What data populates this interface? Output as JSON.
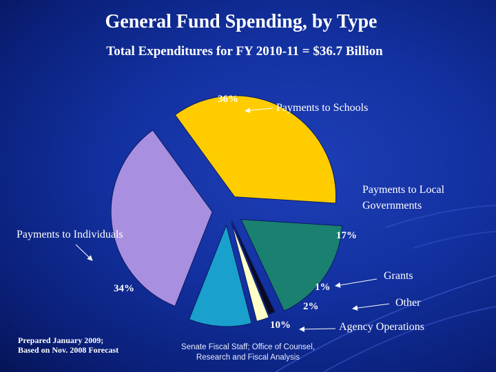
{
  "chart_data": {
    "type": "pie",
    "title": "General Fund Spending, by Type",
    "subtitle": "Total Expenditures for FY 2010-11 = $36.7 Billion",
    "slices": [
      {
        "name": "Payments to Schools",
        "value": 36,
        "label": "36%",
        "color": "#ffcc00"
      },
      {
        "name": "Payments to Local Governments",
        "value": 17,
        "label": "17%",
        "color": "#1a8070"
      },
      {
        "name": "Grants",
        "value": 1,
        "label": "1%",
        "color": "#0a0a20"
      },
      {
        "name": "Other",
        "value": 2,
        "label": "2%",
        "color": "#ffffc8"
      },
      {
        "name": "Agency Operations",
        "value": 10,
        "label": "10%",
        "color": "#1aa0cc"
      },
      {
        "name": "Payments to Individuals",
        "value": 34,
        "label": "34%",
        "color": "#a88fe0"
      }
    ],
    "legend": "none"
  },
  "footer": {
    "prepared_line1": "Prepared January 2009;",
    "prepared_line2": "Based on Nov. 2008 Forecast",
    "source_line1": "Senate Fiscal Staff;  Office of Counsel,",
    "source_line2": "Research and Fiscal Analysis"
  }
}
